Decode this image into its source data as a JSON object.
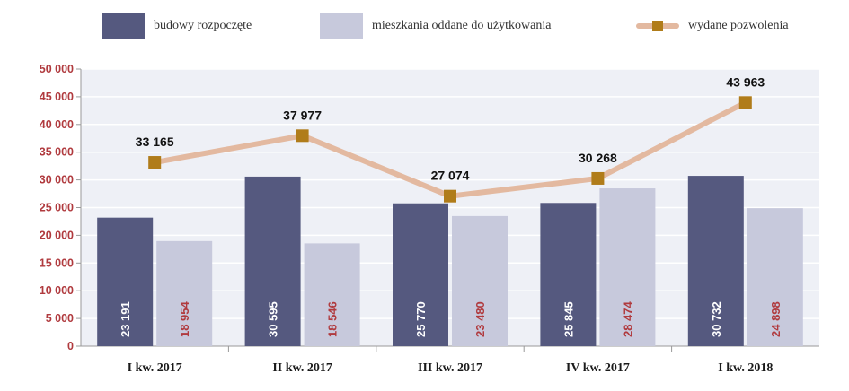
{
  "chart_data": {
    "type": "bar",
    "categories": [
      "I kw. 2017",
      "II kw. 2017",
      "III kw. 2017",
      "IV kw. 2017",
      "I kw. 2018"
    ],
    "series": [
      {
        "name": "budowy rozpoczęte",
        "type": "bar",
        "color": "#55597f",
        "label_color": "#ffffff",
        "values": [
          23191,
          30595,
          25770,
          25845,
          30732
        ],
        "labels": [
          "23 191",
          "30 595",
          "25 770",
          "25 845",
          "30 732"
        ]
      },
      {
        "name": "mieszkania oddane do użytkowania",
        "type": "bar",
        "color": "#c7c9dc",
        "label_color": "#b03a3e",
        "values": [
          18954,
          18546,
          23480,
          28474,
          24898
        ],
        "labels": [
          "18 954",
          "18 546",
          "23 480",
          "28 474",
          "24 898"
        ]
      },
      {
        "name": "wydane pozwolenia",
        "type": "line",
        "color": "#e3b9a0",
        "marker_color": "#b07c1a",
        "values": [
          33165,
          37977,
          27074,
          30268,
          43963
        ],
        "labels": [
          "33 165",
          "37 977",
          "27 074",
          "30 268",
          "43 963"
        ]
      }
    ],
    "ylim": [
      0,
      50000
    ],
    "yticks": [
      0,
      5000,
      10000,
      15000,
      20000,
      25000,
      30000,
      35000,
      40000,
      45000,
      50000
    ],
    "ytick_labels": [
      "0",
      "5 000",
      "10 000",
      "15 000",
      "20 000",
      "25 000",
      "30 000",
      "35 000",
      "40 000",
      "45 000",
      "50 000"
    ],
    "grid": true,
    "legend_position": "top",
    "background": "#eef0f6",
    "grid_color": "#ffffff"
  }
}
